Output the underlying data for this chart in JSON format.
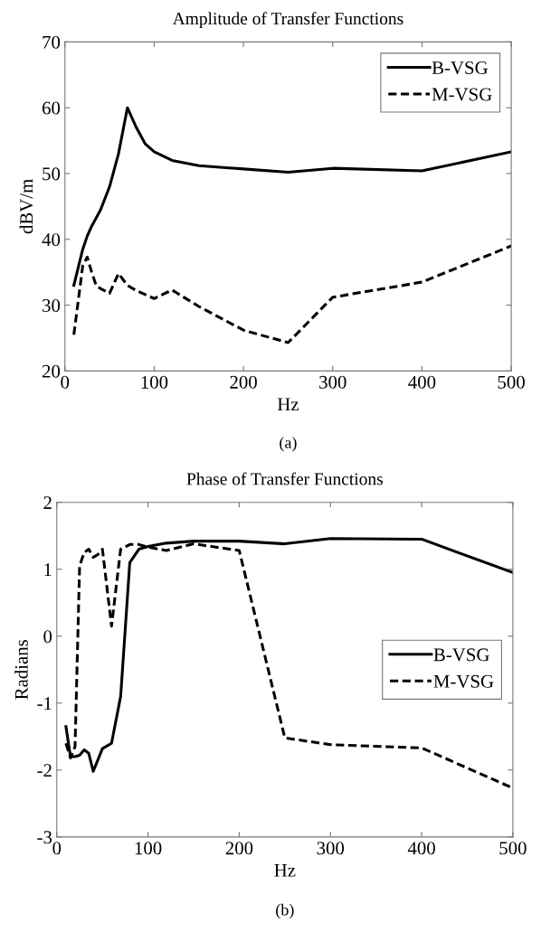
{
  "chart_data": [
    {
      "type": "line",
      "title": "Amplitude of Transfer Functions",
      "xlabel": "Hz",
      "ylabel": "dBV/m",
      "annotations": [
        "(a)"
      ],
      "xlim": [
        0,
        500
      ],
      "ylim": [
        20,
        70
      ],
      "xticks": [
        0,
        100,
        200,
        300,
        400,
        500
      ],
      "yticks": [
        20,
        30,
        40,
        50,
        60,
        70
      ],
      "grid": false,
      "legend": "top right",
      "marker": "none",
      "series": [
        {
          "name": "B-VSG",
          "color": "#000000",
          "line_style": "solid",
          "x": [
            10,
            20,
            25,
            30,
            40,
            50,
            60,
            70,
            80,
            90,
            100,
            120,
            150,
            200,
            250,
            300,
            400,
            500
          ],
          "values": [
            33,
            38.5,
            40.5,
            42,
            44.5,
            48,
            53,
            60,
            57,
            54.5,
            53.3,
            52,
            51.2,
            50.7,
            50.2,
            50.8,
            50.4,
            53.3
          ]
        },
        {
          "name": "M-VSG",
          "color": "#000000",
          "line_style": "dashed",
          "x": [
            10,
            20,
            25,
            30,
            35,
            40,
            50,
            60,
            70,
            80,
            100,
            120,
            150,
            200,
            250,
            300,
            400,
            500
          ],
          "values": [
            25.5,
            36,
            37.3,
            35,
            33,
            32.5,
            31.8,
            34.8,
            33,
            32.2,
            31,
            32.3,
            29.8,
            26.2,
            24.3,
            31.2,
            33.5,
            39
          ]
        }
      ]
    },
    {
      "type": "line",
      "title": "Phase of Transfer Functions",
      "xlabel": "Hz",
      "ylabel": "Radians",
      "annotations": [
        "(b)"
      ],
      "xlim": [
        0,
        500
      ],
      "ylim": [
        -3,
        2
      ],
      "xticks": [
        0,
        100,
        200,
        300,
        400,
        500
      ],
      "yticks": [
        -3,
        -2,
        -1,
        0,
        1,
        2
      ],
      "grid": false,
      "legend": "center right",
      "marker": "none",
      "series": [
        {
          "name": "B-VSG",
          "color": "#000000",
          "line_style": "solid",
          "x": [
            10,
            15,
            20,
            25,
            30,
            35,
            40,
            50,
            60,
            70,
            80,
            90,
            100,
            120,
            150,
            200,
            250,
            300,
            400,
            500
          ],
          "values": [
            -1.35,
            -1.8,
            -1.8,
            -1.78,
            -1.7,
            -1.75,
            -2.02,
            -1.68,
            -1.6,
            -0.9,
            1.1,
            1.3,
            1.34,
            1.39,
            1.42,
            1.42,
            1.38,
            1.46,
            1.45,
            0.95
          ]
        },
        {
          "name": "M-VSG",
          "color": "#000000",
          "line_style": "dashed",
          "x": [
            10,
            15,
            20,
            25,
            30,
            35,
            40,
            45,
            50,
            60,
            70,
            80,
            90,
            100,
            120,
            150,
            200,
            250,
            300,
            400,
            500
          ],
          "values": [
            -1.6,
            -1.82,
            -1.65,
            1.05,
            1.25,
            1.3,
            1.18,
            1.22,
            1.3,
            0.15,
            1.3,
            1.37,
            1.37,
            1.33,
            1.28,
            1.38,
            1.28,
            -1.52,
            -1.62,
            -1.67,
            -2.27
          ]
        }
      ]
    }
  ]
}
